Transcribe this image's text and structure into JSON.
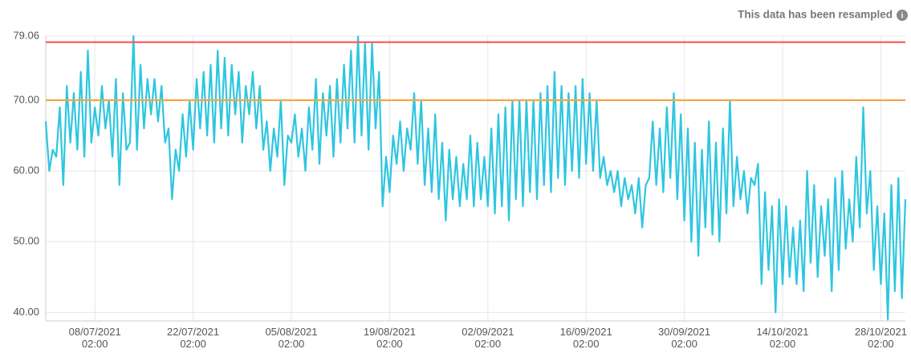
{
  "chart_data": {
    "type": "line",
    "annotation": "This data has been resampled",
    "color": "#2ec6e0",
    "grid": true,
    "reference_lines": [
      {
        "value": 78.2,
        "color": "#f0575a"
      },
      {
        "value": 70,
        "color": "#f5a742"
      }
    ],
    "xlim": [
      "01/07/2021 02:00",
      "31/10/2021 14:00"
    ],
    "xticks": [
      "08/07/2021 02:00",
      "22/07/2021 02:00",
      "05/08/2021 02:00",
      "19/08/2021 02:00",
      "02/09/2021 02:00",
      "16/09/2021 02:00",
      "30/09/2021 02:00",
      "14/10/2021 02:00",
      "28/10/2021 02:00"
    ],
    "ylim": [
      38.8,
      79.06
    ],
    "yticks": [
      {
        "value": 40,
        "label": "40.00"
      },
      {
        "value": 50,
        "label": "50.00"
      },
      {
        "value": 60,
        "label": "60.00"
      },
      {
        "value": 70,
        "label": "70.00"
      },
      79.06
    ],
    "x": [
      "01/07/2021 02:00",
      "01/07/2021 14:00",
      "02/07/2021 02:00",
      "02/07/2021 14:00",
      "03/07/2021 02:00",
      "03/07/2021 14:00",
      "04/07/2021 02:00",
      "04/07/2021 14:00",
      "05/07/2021 02:00",
      "05/07/2021 14:00",
      "06/07/2021 02:00",
      "06/07/2021 14:00",
      "07/07/2021 02:00",
      "07/07/2021 14:00",
      "08/07/2021 02:00",
      "08/07/2021 14:00",
      "09/07/2021 02:00",
      "09/07/2021 14:00",
      "10/07/2021 02:00",
      "10/07/2021 14:00",
      "11/07/2021 02:00",
      "11/07/2021 14:00",
      "12/07/2021 02:00",
      "12/07/2021 14:00",
      "13/07/2021 02:00",
      "13/07/2021 14:00",
      "14/07/2021 02:00",
      "14/07/2021 14:00",
      "15/07/2021 02:00",
      "15/07/2021 14:00",
      "16/07/2021 02:00",
      "16/07/2021 14:00",
      "17/07/2021 02:00",
      "17/07/2021 14:00",
      "18/07/2021 02:00",
      "18/07/2021 14:00",
      "19/07/2021 02:00",
      "19/07/2021 14:00",
      "20/07/2021 02:00",
      "20/07/2021 14:00",
      "21/07/2021 02:00",
      "21/07/2021 14:00",
      "22/07/2021 02:00",
      "22/07/2021 14:00",
      "23/07/2021 02:00",
      "23/07/2021 14:00",
      "24/07/2021 02:00",
      "24/07/2021 14:00",
      "25/07/2021 02:00",
      "25/07/2021 14:00",
      "26/07/2021 02:00",
      "26/07/2021 14:00",
      "27/07/2021 02:00",
      "27/07/2021 14:00",
      "28/07/2021 02:00",
      "28/07/2021 14:00",
      "29/07/2021 02:00",
      "29/07/2021 14:00",
      "30/07/2021 02:00",
      "30/07/2021 14:00",
      "31/07/2021 02:00",
      "31/07/2021 14:00",
      "01/08/2021 02:00",
      "01/08/2021 14:00",
      "02/08/2021 02:00",
      "02/08/2021 14:00",
      "03/08/2021 02:00",
      "03/08/2021 14:00",
      "04/08/2021 02:00",
      "04/08/2021 14:00",
      "05/08/2021 02:00",
      "05/08/2021 14:00",
      "06/08/2021 02:00",
      "06/08/2021 14:00",
      "07/08/2021 02:00",
      "07/08/2021 14:00",
      "08/08/2021 02:00",
      "08/08/2021 14:00",
      "09/08/2021 02:00",
      "09/08/2021 14:00",
      "10/08/2021 02:00",
      "10/08/2021 14:00",
      "11/08/2021 02:00",
      "11/08/2021 14:00",
      "12/08/2021 02:00",
      "12/08/2021 14:00",
      "13/08/2021 02:00",
      "13/08/2021 14:00",
      "14/08/2021 02:00",
      "14/08/2021 14:00",
      "15/08/2021 02:00",
      "15/08/2021 14:00",
      "16/08/2021 02:00",
      "16/08/2021 14:00",
      "17/08/2021 02:00",
      "17/08/2021 14:00",
      "18/08/2021 02:00",
      "18/08/2021 14:00",
      "19/08/2021 02:00",
      "19/08/2021 14:00",
      "20/08/2021 02:00",
      "20/08/2021 14:00",
      "21/08/2021 02:00",
      "21/08/2021 14:00",
      "22/08/2021 02:00",
      "22/08/2021 14:00",
      "23/08/2021 02:00",
      "23/08/2021 14:00",
      "24/08/2021 02:00",
      "24/08/2021 14:00",
      "25/08/2021 02:00",
      "25/08/2021 14:00",
      "26/08/2021 02:00",
      "26/08/2021 14:00",
      "27/08/2021 02:00",
      "27/08/2021 14:00",
      "28/08/2021 02:00",
      "28/08/2021 14:00",
      "29/08/2021 02:00",
      "29/08/2021 14:00",
      "30/08/2021 02:00",
      "30/08/2021 14:00",
      "31/08/2021 02:00",
      "31/08/2021 14:00",
      "01/09/2021 02:00",
      "01/09/2021 14:00",
      "02/09/2021 02:00",
      "02/09/2021 14:00",
      "03/09/2021 02:00",
      "03/09/2021 14:00",
      "04/09/2021 02:00",
      "04/09/2021 14:00",
      "05/09/2021 02:00",
      "05/09/2021 14:00",
      "06/09/2021 02:00",
      "06/09/2021 14:00",
      "07/09/2021 02:00",
      "07/09/2021 14:00",
      "08/09/2021 02:00",
      "08/09/2021 14:00",
      "09/09/2021 02:00",
      "09/09/2021 14:00",
      "10/09/2021 02:00",
      "10/09/2021 14:00",
      "11/09/2021 02:00",
      "11/09/2021 14:00",
      "12/09/2021 02:00",
      "12/09/2021 14:00",
      "13/09/2021 02:00",
      "13/09/2021 14:00",
      "14/09/2021 02:00",
      "14/09/2021 14:00",
      "15/09/2021 02:00",
      "15/09/2021 14:00",
      "16/09/2021 02:00",
      "16/09/2021 14:00",
      "17/09/2021 02:00",
      "17/09/2021 14:00",
      "18/09/2021 02:00",
      "18/09/2021 14:00",
      "19/09/2021 02:00",
      "19/09/2021 14:00",
      "20/09/2021 02:00",
      "20/09/2021 14:00",
      "21/09/2021 02:00",
      "21/09/2021 14:00",
      "22/09/2021 02:00",
      "22/09/2021 14:00",
      "23/09/2021 02:00",
      "23/09/2021 14:00",
      "24/09/2021 02:00",
      "24/09/2021 14:00",
      "25/09/2021 02:00",
      "25/09/2021 14:00",
      "26/09/2021 02:00",
      "26/09/2021 14:00",
      "27/09/2021 02:00",
      "27/09/2021 14:00",
      "28/09/2021 02:00",
      "28/09/2021 14:00",
      "29/09/2021 02:00",
      "29/09/2021 14:00",
      "30/09/2021 02:00",
      "30/09/2021 14:00",
      "01/10/2021 02:00",
      "01/10/2021 14:00",
      "02/10/2021 02:00",
      "02/10/2021 14:00",
      "03/10/2021 02:00",
      "03/10/2021 14:00",
      "04/10/2021 02:00",
      "04/10/2021 14:00",
      "05/10/2021 02:00",
      "05/10/2021 14:00",
      "06/10/2021 02:00",
      "06/10/2021 14:00",
      "07/10/2021 02:00",
      "07/10/2021 14:00",
      "08/10/2021 02:00",
      "08/10/2021 14:00",
      "09/10/2021 02:00",
      "09/10/2021 14:00",
      "10/10/2021 02:00",
      "10/10/2021 14:00",
      "11/10/2021 02:00",
      "11/10/2021 14:00",
      "12/10/2021 02:00",
      "12/10/2021 14:00",
      "13/10/2021 02:00",
      "13/10/2021 14:00",
      "14/10/2021 02:00",
      "14/10/2021 14:00",
      "15/10/2021 02:00",
      "15/10/2021 14:00",
      "16/10/2021 02:00",
      "16/10/2021 14:00",
      "17/10/2021 02:00",
      "17/10/2021 14:00",
      "18/10/2021 02:00",
      "18/10/2021 14:00",
      "19/10/2021 02:00",
      "19/10/2021 14:00",
      "20/10/2021 02:00",
      "20/10/2021 14:00",
      "21/10/2021 02:00",
      "21/10/2021 14:00",
      "22/10/2021 02:00",
      "22/10/2021 14:00",
      "23/10/2021 02:00",
      "23/10/2021 14:00",
      "24/10/2021 02:00",
      "24/10/2021 14:00",
      "25/10/2021 02:00",
      "25/10/2021 14:00",
      "26/10/2021 02:00",
      "26/10/2021 14:00",
      "27/10/2021 02:00",
      "27/10/2021 14:00",
      "28/10/2021 02:00",
      "28/10/2021 14:00",
      "29/10/2021 02:00",
      "29/10/2021 14:00",
      "30/10/2021 02:00",
      "30/10/2021 14:00",
      "31/10/2021 02:00",
      "31/10/2021 14:00"
    ],
    "values": [
      67,
      60,
      63,
      62,
      69,
      58,
      72,
      64,
      71,
      63,
      74,
      62,
      77,
      64,
      69,
      65,
      72,
      66,
      70,
      62,
      73,
      58,
      71,
      63,
      64,
      79.06,
      63,
      75,
      66,
      73,
      68,
      73,
      67,
      72,
      64,
      66,
      56,
      63,
      60,
      68,
      62,
      70,
      63,
      73,
      66,
      74,
      65,
      75,
      64,
      77,
      66,
      76,
      65,
      75,
      68,
      74,
      64,
      72,
      68,
      74,
      66,
      72,
      63,
      67,
      60,
      66,
      62,
      70,
      58,
      65,
      64,
      68,
      62,
      66,
      60,
      69,
      63,
      73,
      61,
      71,
      65,
      72,
      62,
      73,
      64,
      75,
      66,
      77,
      64,
      79,
      65,
      78,
      63,
      78,
      66,
      74,
      55,
      62,
      57,
      65,
      61,
      67,
      60,
      66,
      63,
      71,
      61,
      70,
      58,
      66,
      57,
      68,
      56,
      64,
      53,
      63,
      56,
      62,
      55,
      61,
      56,
      65,
      55,
      64,
      56,
      62,
      55,
      66,
      54,
      68,
      55,
      69,
      53,
      70,
      56,
      70,
      55,
      70,
      57,
      70,
      56,
      71,
      58,
      72,
      57,
      74,
      59,
      72,
      58,
      71,
      60,
      72,
      59,
      73,
      61,
      71,
      60,
      70,
      59,
      62,
      58,
      60,
      57,
      60,
      55,
      59,
      56,
      58,
      54,
      59,
      52,
      58,
      59,
      67,
      58,
      66,
      57,
      69,
      59,
      71,
      56,
      68,
      53,
      66,
      50,
      64,
      48,
      63,
      52,
      67,
      51,
      64,
      50,
      66,
      54,
      70,
      55,
      62,
      56,
      60,
      54,
      59,
      58,
      61,
      44,
      57,
      46,
      55,
      40,
      56,
      44,
      55,
      45,
      52,
      44,
      53,
      43,
      60,
      47,
      58,
      45,
      55,
      48,
      56,
      43,
      59,
      46,
      60,
      49,
      56,
      50,
      62,
      52,
      69,
      54,
      60,
      46,
      55,
      44,
      54,
      39,
      58,
      43,
      59,
      42,
      56
    ]
  }
}
